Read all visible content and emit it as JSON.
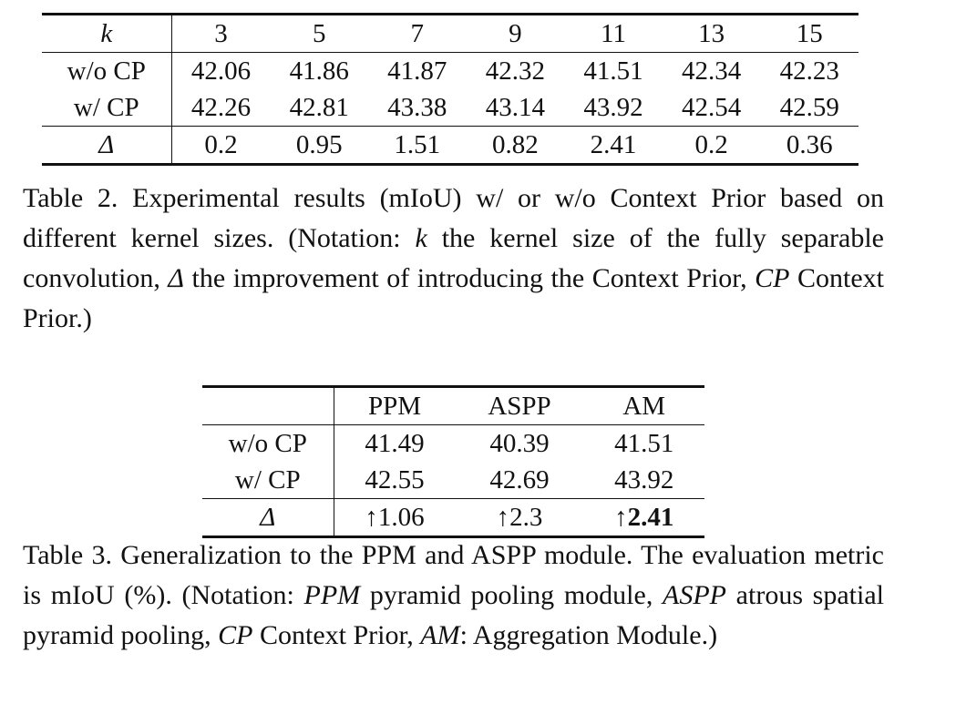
{
  "table2": {
    "header_label": "k",
    "kernel_sizes": [
      "3",
      "5",
      "7",
      "9",
      "11",
      "13",
      "15"
    ],
    "rows": [
      {
        "label": "w/o CP",
        "values": [
          "42.06",
          "41.86",
          "41.87",
          "42.32",
          "41.51",
          "42.34",
          "42.23"
        ],
        "bold_index": 5
      },
      {
        "label": "w/ CP",
        "values": [
          "42.26",
          "42.81",
          "43.38",
          "43.14",
          "43.92",
          "42.54",
          "42.59"
        ],
        "bold_index": 4
      },
      {
        "label": "Δ",
        "values": [
          "0.2",
          "0.95",
          "1.51",
          "0.82",
          "2.41",
          "0.2",
          "0.36"
        ],
        "bold_index": 4
      }
    ],
    "caption": {
      "t1": "Table 2. Experimental results (mIoU) w/ or w/o Context Prior based on different kernel sizes. (Notation: ",
      "i1": "k",
      "t2": " the kernel size of the fully separable convolution, ",
      "i2": "Δ",
      "t3": " the improvement of introducing the Context Prior, ",
      "i3": "CP",
      "t4": " Context Prior.)"
    }
  },
  "table3": {
    "columns": [
      "PPM",
      "ASPP",
      "AM"
    ],
    "rows": [
      {
        "label": "w/o CP",
        "values": [
          "41.49",
          "40.39",
          "41.51"
        ],
        "bold_index": 2
      },
      {
        "label": "w/ CP",
        "values": [
          "42.55",
          "42.69",
          "43.92"
        ],
        "bold_index": 2
      },
      {
        "label": "Δ",
        "arrow": "↑",
        "values": [
          "1.06",
          "2.3",
          "2.41"
        ],
        "bold_index": 2
      }
    ],
    "caption": {
      "t1": "Table 3. Generalization to the PPM and ASPP module. The evaluation metric is mIoU (%). (Notation: ",
      "i1": "PPM",
      "t2": " pyramid pooling module, ",
      "i2": "ASPP",
      "t3": " atrous spatial pyramid pooling, ",
      "i3": "CP",
      "t4": " Context Prior, ",
      "i4": "AM",
      "t5": ": Aggregation Module.)"
    }
  }
}
